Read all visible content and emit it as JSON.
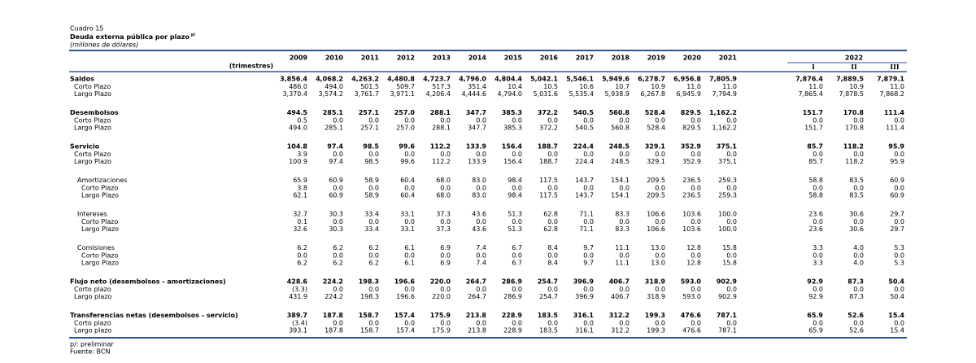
{
  "header": {
    "caption": "Cuadro 15",
    "title": "Deuda externa pública por plazo",
    "title_note": "p/",
    "subtitle": "(millones de dólares)"
  },
  "columns": {
    "years": [
      "2009",
      "2010",
      "2011",
      "2012",
      "2013",
      "2014",
      "2015",
      "2016",
      "2017",
      "2018",
      "2019",
      "2020",
      "2021"
    ],
    "row_note": "(trimestres)",
    "group": "2022",
    "quarters": [
      "I",
      "II",
      "III"
    ]
  },
  "sections": [
    {
      "label": "Saldos",
      "values": [
        "3,856.4",
        "4,068.2",
        "4,263.2",
        "4,480.8",
        "4,723.7",
        "4,796.0",
        "4,804.4",
        "5,042.1",
        "5,546.1",
        "5,949.6",
        "6,278.7",
        "6,956.8",
        "7,805.9",
        "7,876.4",
        "7,889.5",
        "7,879.1"
      ],
      "rows": [
        {
          "label": "Corto Plazo",
          "values": [
            "486.0",
            "494.0",
            "501.5",
            "509.7",
            "517.3",
            "351.4",
            "10.4",
            "10.5",
            "10.6",
            "10.7",
            "10.9",
            "11.0",
            "11.0",
            "11.0",
            "10.9",
            "11.0"
          ]
        },
        {
          "label": "Largo Plazo",
          "values": [
            "3,370.4",
            "3,574.2",
            "3,761.7",
            "3,971.1",
            "4,206.4",
            "4,444.6",
            "4,794.0",
            "5,031.6",
            "5,535.4",
            "5,938.9",
            "6,267.8",
            "6,945.9",
            "7,794.9",
            "7,865.4",
            "7,878.5",
            "7,868.2"
          ]
        }
      ]
    },
    {
      "label": "Desembolsos",
      "values": [
        "494.5",
        "285.1",
        "257.1",
        "257.0",
        "288.1",
        "347.7",
        "385.3",
        "372.2",
        "540.5",
        "560.8",
        "528.4",
        "829.5",
        "1,162.2",
        "151.7",
        "170.8",
        "111.4"
      ],
      "rows": [
        {
          "label": "Corto Plazo",
          "values": [
            "0.5",
            "0.0",
            "0.0",
            "0.0",
            "0.0",
            "0.0",
            "0.0",
            "0.0",
            "0.0",
            "0.0",
            "0.0",
            "0.0",
            "0.0",
            "0.0",
            "0.0",
            "0.0"
          ]
        },
        {
          "label": "Largo Plazo",
          "values": [
            "494.0",
            "285.1",
            "257.1",
            "257.0",
            "288.1",
            "347.7",
            "385.3",
            "372.2",
            "540.5",
            "560.8",
            "528.4",
            "829.5",
            "1,162.2",
            "151.7",
            "170.8",
            "111.4"
          ]
        }
      ]
    },
    {
      "label": "Servicio",
      "values": [
        "104.8",
        "97.4",
        "98.5",
        "99.6",
        "112.2",
        "133.9",
        "156.4",
        "188.7",
        "224.4",
        "248.5",
        "329.1",
        "352.9",
        "375.1",
        "85.7",
        "118.2",
        "95.9"
      ],
      "rows": [
        {
          "label": "Corto Plazo",
          "values": [
            "3.9",
            "0.0",
            "0.0",
            "0.0",
            "0.0",
            "0.0",
            "0.0",
            "0.0",
            "0.0",
            "0.0",
            "0.0",
            "0.0",
            "0.0",
            "0.0",
            "0.0",
            "0.0"
          ]
        },
        {
          "label": "Largo Plazo",
          "values": [
            "100.9",
            "97.4",
            "98.5",
            "99.6",
            "112.2",
            "133.9",
            "156.4",
            "188.7",
            "224.4",
            "248.5",
            "329.1",
            "352.9",
            "375.1",
            "85.7",
            "118.2",
            "95.9"
          ]
        }
      ],
      "breakdown": [
        {
          "label": "Amortizaciones",
          "values": [
            "65.9",
            "60.9",
            "58.9",
            "60.4",
            "68.0",
            "83.0",
            "98.4",
            "117.5",
            "143.7",
            "154.1",
            "209.5",
            "236.5",
            "259.3",
            "58.8",
            "83.5",
            "60.9"
          ],
          "rows": [
            {
              "label": "Corto Plazo",
              "values": [
                "3.8",
                "0.0",
                "0.0",
                "0.0",
                "0.0",
                "0.0",
                "0.0",
                "0.0",
                "0.0",
                "0.0",
                "0.0",
                "0.0",
                "0.0",
                "0.0",
                "0.0",
                "0.0"
              ]
            },
            {
              "label": "Largo Plazo",
              "values": [
                "62.1",
                "60.9",
                "58.9",
                "60.4",
                "68.0",
                "83.0",
                "98.4",
                "117.5",
                "143.7",
                "154.1",
                "209.5",
                "236.5",
                "259.3",
                "58.8",
                "83.5",
                "60.9"
              ]
            }
          ]
        },
        {
          "label": "Intereses",
          "values": [
            "32.7",
            "30.3",
            "33.4",
            "33.1",
            "37.3",
            "43.6",
            "51.3",
            "62.8",
            "71.1",
            "83.3",
            "106.6",
            "103.6",
            "100.0",
            "23.6",
            "30.6",
            "29.7"
          ],
          "rows": [
            {
              "label": "Corto Plazo",
              "values": [
                "0.1",
                "0.0",
                "0.0",
                "0.0",
                "0.0",
                "0.0",
                "0.0",
                "0.0",
                "0.0",
                "0.0",
                "0.0",
                "0.0",
                "0.0",
                "0.0",
                "0.0",
                "0.0"
              ]
            },
            {
              "label": "Largo Plazo",
              "values": [
                "32.6",
                "30.3",
                "33.4",
                "33.1",
                "37.3",
                "43.6",
                "51.3",
                "62.8",
                "71.1",
                "83.3",
                "106.6",
                "103.6",
                "100.0",
                "23.6",
                "30.6",
                "29.7"
              ]
            }
          ]
        },
        {
          "label": "Comisiones",
          "values": [
            "6.2",
            "6.2",
            "6.2",
            "6.1",
            "6.9",
            "7.4",
            "6.7",
            "8.4",
            "9.7",
            "11.1",
            "13.0",
            "12.8",
            "15.8",
            "3.3",
            "4.0",
            "5.3"
          ],
          "rows": [
            {
              "label": "Corto Plazo",
              "values": [
                "0.0",
                "0.0",
                "0.0",
                "0.0",
                "0.0",
                "0.0",
                "0.0",
                "0.0",
                "0.0",
                "0.0",
                "0.0",
                "0.0",
                "0.0",
                "0.0",
                "0.0",
                "0.0"
              ]
            },
            {
              "label": "Largo Plazo",
              "values": [
                "6.2",
                "6.2",
                "6.2",
                "6.1",
                "6.9",
                "7.4",
                "6.7",
                "8.4",
                "9.7",
                "11.1",
                "13.0",
                "12.8",
                "15.8",
                "3.3",
                "4.0",
                "5.3"
              ]
            }
          ]
        }
      ]
    },
    {
      "label": "Flujo neto (desembolsos - amortizaciones)",
      "values": [
        "428.6",
        "224.2",
        "198.3",
        "196.6",
        "220.0",
        "264.7",
        "286.9",
        "254.7",
        "396.9",
        "406.7",
        "318.9",
        "593.0",
        "902.9",
        "92.9",
        "87.3",
        "50.4"
      ],
      "rows": [
        {
          "label": "Corto plazo",
          "values": [
            "(3.3)",
            "0.0",
            "0.0",
            "0.0",
            "0.0",
            "0.0",
            "0.0",
            "0.0",
            "0.0",
            "0.0",
            "0.0",
            "0.0",
            "0.0",
            "0.0",
            "0.0",
            "0.0"
          ]
        },
        {
          "label": "Largo plazo",
          "values": [
            "431.9",
            "224.2",
            "198.3",
            "196.6",
            "220.0",
            "264.7",
            "286.9",
            "254.7",
            "396.9",
            "406.7",
            "318.9",
            "593.0",
            "902.9",
            "92.9",
            "87.3",
            "50.4"
          ]
        }
      ]
    },
    {
      "label": "Transferencias netas (desembolsos - servicio)",
      "values": [
        "389.7",
        "187.8",
        "158.7",
        "157.4",
        "175.9",
        "213.8",
        "228.9",
        "183.5",
        "316.1",
        "312.2",
        "199.3",
        "476.6",
        "787.1",
        "65.9",
        "52.6",
        "15.4"
      ],
      "rows": [
        {
          "label": "Corto plazo",
          "values": [
            "(3.4)",
            "0.0",
            "0.0",
            "0.0",
            "0.0",
            "0.0",
            "0.0",
            "0.0",
            "0.0",
            "0.0",
            "0.0",
            "0.0",
            "0.0",
            "0.0",
            "0.0",
            "0.0"
          ]
        },
        {
          "label": "Largo plazo",
          "values": [
            "393.1",
            "187.8",
            "158.7",
            "157.4",
            "175.9",
            "213.8",
            "228.9",
            "183.5",
            "316.1",
            "312.2",
            "199.3",
            "476.6",
            "787.1",
            "65.9",
            "52.6",
            "15.4"
          ]
        }
      ]
    }
  ],
  "footer": {
    "note": "p/: preliminar",
    "source": "Fuente: BCN"
  }
}
